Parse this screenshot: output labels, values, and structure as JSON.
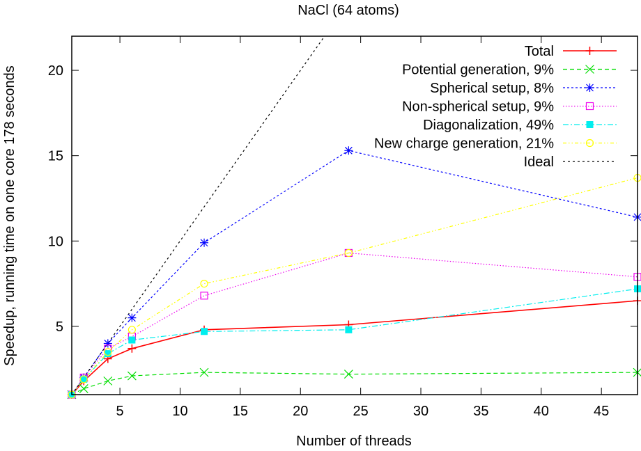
{
  "chart_data": {
    "type": "line",
    "title": "NaCl (64 atoms)",
    "xlabel": "Number of threads",
    "ylabel": "Speedup, running time on one core 178 seconds",
    "xlim": [
      1,
      48
    ],
    "ylim": [
      1,
      22
    ],
    "xticks": [
      5,
      10,
      15,
      20,
      25,
      30,
      35,
      40,
      45
    ],
    "yticks": [
      5,
      10,
      15,
      20
    ],
    "grid": false,
    "legend_position": "top-right",
    "x": [
      1,
      2,
      4,
      6,
      12,
      24,
      48
    ],
    "series": [
      {
        "name": "Total",
        "color": "#ff0000",
        "dash": "solid",
        "marker": "plus",
        "values": [
          1,
          1.8,
          3.1,
          3.7,
          4.8,
          5.1,
          6.5
        ]
      },
      {
        "name": "Potential generation, 9%",
        "color": "#00dd00",
        "dash": "dashed",
        "marker": "cross",
        "values": [
          1,
          1.35,
          1.8,
          2.1,
          2.3,
          2.2,
          2.3
        ]
      },
      {
        "name": "Spherical setup, 8%",
        "color": "#0000ff",
        "dash": "short-dash",
        "marker": "star",
        "values": [
          1,
          2.0,
          4.0,
          5.5,
          9.9,
          15.3,
          11.4
        ]
      },
      {
        "name": "Non-spherical setup, 9%",
        "color": "#ee00ee",
        "dash": "dotted",
        "marker": "open-square",
        "values": [
          1,
          2.0,
          3.7,
          4.4,
          6.8,
          9.3,
          7.9
        ]
      },
      {
        "name": "Diagonalization, 49%",
        "color": "#00eeee",
        "dash": "dash-dot",
        "marker": "filled-square",
        "values": [
          1,
          1.9,
          3.4,
          4.2,
          4.7,
          4.8,
          7.2
        ]
      },
      {
        "name": "New charge generation, 21%",
        "color": "#ffff00",
        "dash": "dash-dot-dot",
        "marker": "open-circle",
        "values": [
          1,
          1.9,
          3.5,
          4.8,
          7.5,
          9.3,
          13.7
        ]
      },
      {
        "name": "Ideal",
        "color": "#000000",
        "dash": "fine-dash",
        "marker": "none",
        "values": [
          1,
          2,
          4,
          6,
          12,
          24,
          48
        ]
      }
    ]
  }
}
